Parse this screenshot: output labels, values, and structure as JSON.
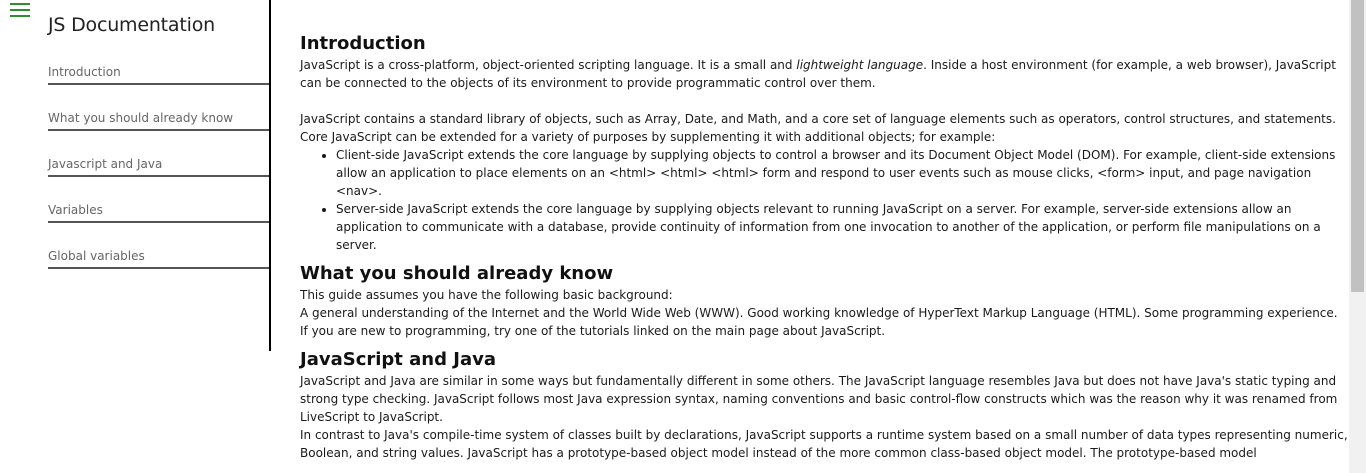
{
  "nav": {
    "title": "JS Documentation",
    "items": [
      {
        "label": "Introduction"
      },
      {
        "label": "What you should already know"
      },
      {
        "label": "Javascript and Java"
      },
      {
        "label": "Variables"
      },
      {
        "label": "Global variables"
      }
    ]
  },
  "intro": {
    "title": "Introduction",
    "p1_pre": "JavaScript is a cross-platform, object-oriented scripting language. It is a small and ",
    "p1_em": "lightweight language",
    "p1_post": ". Inside a host environment (for example, a web browser), JavaScript can be connected to the objects of its environment to provide programmatic control over them.",
    "p2": "JavaScript contains a standard library of objects, such as Array, Date, and Math, and a core set of language elements such as operators, control structures, and statements. Core JavaScript can be extended for a variety of purposes by supplementing it with additional objects; for example:",
    "li1": "Client-side JavaScript extends the core language by supplying objects to control a browser and its Document Object Model (DOM). For example, client-side extensions allow an application to place elements on an <html> <html> <html> form and respond to user events such as mouse clicks, <form> input, and page navigation <nav>.",
    "li2": "Server-side JavaScript extends the core language by supplying objects relevant to running JavaScript on a server. For example, server-side extensions allow an application to communicate with a database, provide continuity of information from one invocation to another of the application, or perform file manipulations on a server."
  },
  "know": {
    "title": "What you should already know",
    "p1": "This guide assumes you have the following basic background:",
    "p2": "A general understanding of the Internet and the World Wide Web (WWW). Good working knowledge of HyperText Markup Language (HTML). Some programming experience. If you are new to programming, try one of the tutorials linked on the main page about JavaScript."
  },
  "java": {
    "title": "JavaScript and Java",
    "p1": "JavaScript and Java are similar in some ways but fundamentally different in some others. The JavaScript language resembles Java but does not have Java's static typing and strong type checking. JavaScript follows most Java expression syntax, naming conventions and basic control-flow constructs which was the reason why it was renamed from LiveScript to JavaScript.",
    "p2": "In contrast to Java's compile-time system of classes built by declarations, JavaScript supports a runtime system based on a small number of data types representing numeric, Boolean, and string values. JavaScript has a prototype-based object model instead of the more common class-based object model. The prototype-based model"
  },
  "colors": {
    "accent": "#2f8f2f",
    "nav_border": "#000000",
    "link_text": "#666666"
  },
  "icons": {
    "menu": "hamburger-menu-icon"
  }
}
